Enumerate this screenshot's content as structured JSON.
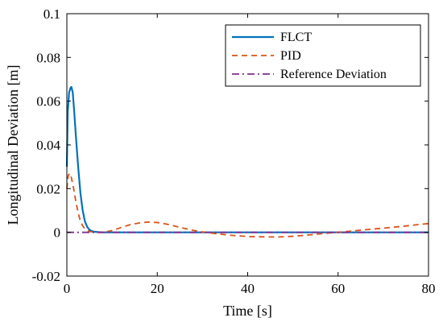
{
  "chart_data": {
    "type": "line",
    "xlabel": "Time [s]",
    "ylabel": "Longitudinal Deviation [m]",
    "xlim": [
      0,
      80
    ],
    "ylim": [
      -0.02,
      0.1
    ],
    "xticks": [
      0,
      20,
      40,
      60,
      80
    ],
    "xtick_labels": [
      "0",
      "20",
      "40",
      "60",
      "80"
    ],
    "yticks": [
      -0.02,
      0,
      0.02,
      0.04,
      0.06,
      0.08,
      0.1
    ],
    "ytick_labels": [
      "-0.02",
      "0",
      "0.02",
      "0.04",
      "0.06",
      "0.08",
      "0.1"
    ],
    "grid": false,
    "legend_position": "top-right",
    "series": [
      {
        "name": "FLCT",
        "color": "#0072BD",
        "dash": "solid",
        "x": [
          0,
          0.2,
          0.5,
          0.8,
          1.0,
          1.3,
          1.6,
          2.0,
          2.5,
          3.0,
          3.5,
          4.0,
          4.5,
          5.0,
          5.5,
          6.0,
          7.0,
          8.0,
          10,
          20,
          40,
          60,
          80
        ],
        "y": [
          0.03,
          0.055,
          0.064,
          0.066,
          0.0665,
          0.064,
          0.056,
          0.044,
          0.03,
          0.018,
          0.01,
          0.005,
          0.0025,
          0.0012,
          0.0006,
          0.0003,
          0.0001,
          0,
          0,
          0,
          0,
          0,
          0
        ]
      },
      {
        "name": "PID",
        "color": "#D95319",
        "dash": "dashed",
        "x": [
          0,
          0.3,
          0.6,
          1.0,
          1.5,
          2.0,
          2.5,
          3.0,
          3.5,
          4.0,
          5.0,
          6.0,
          7.0,
          8.0,
          10,
          12,
          14,
          16,
          18,
          20,
          22,
          24,
          26,
          28,
          30,
          33,
          36,
          40,
          44,
          47,
          50,
          54,
          58,
          62,
          66,
          70,
          74,
          78,
          80
        ],
        "y": [
          0.02,
          0.026,
          0.027,
          0.025,
          0.02,
          0.014,
          0.009,
          0.005,
          0.003,
          0.0015,
          0.0004,
          0.0001,
          0,
          0,
          0.0008,
          0.0022,
          0.0035,
          0.0043,
          0.0047,
          0.0045,
          0.0038,
          0.0028,
          0.0018,
          0.0009,
          0.0002,
          -0.0006,
          -0.0013,
          -0.0019,
          -0.0021,
          -0.0021,
          -0.0018,
          -0.0011,
          -0.0003,
          0.0004,
          0.0012,
          0.0019,
          0.0027,
          0.0036,
          0.004
        ]
      },
      {
        "name": "Reference Deviation",
        "color": "#7E2F8E",
        "dash": "dashdot",
        "x": [
          0,
          80
        ],
        "y": [
          0,
          0
        ]
      }
    ]
  }
}
